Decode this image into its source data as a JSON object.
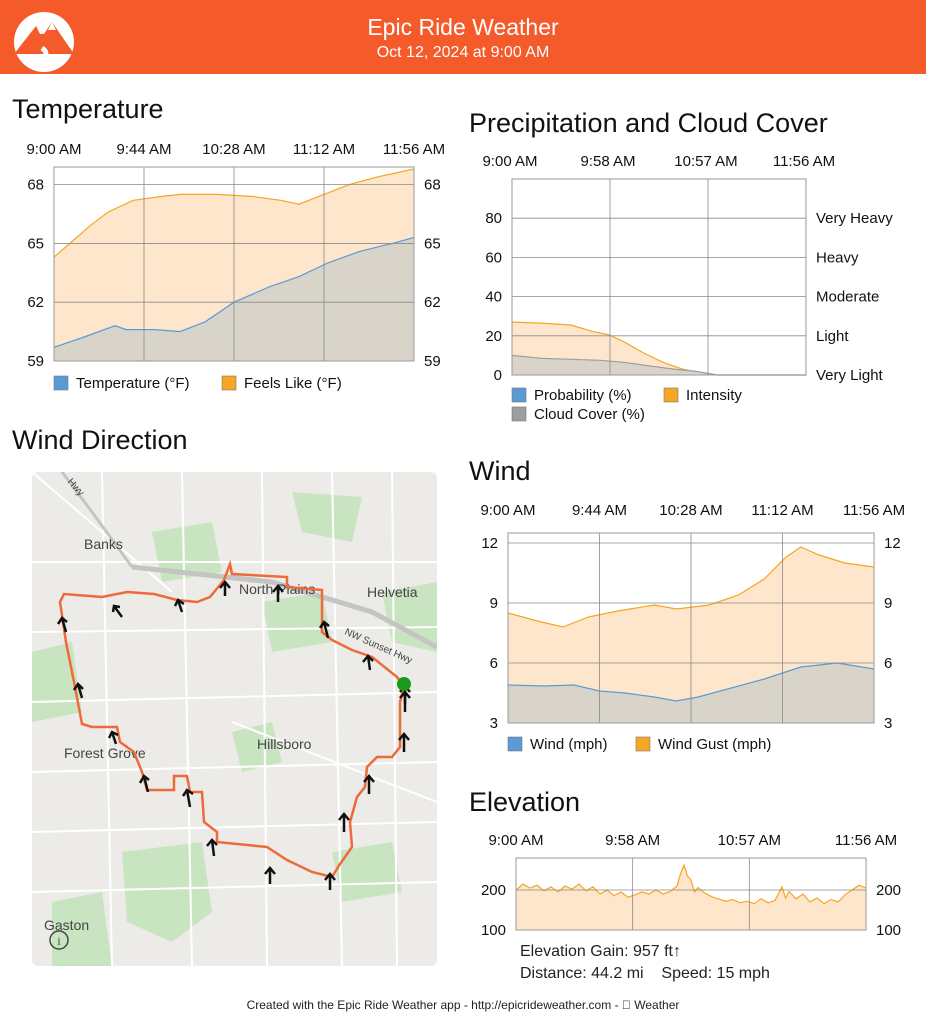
{
  "header": {
    "app_title": "Epic Ride Weather",
    "date": "Oct 12, 2024 at 9:00 AM",
    "color": "#f45a2a"
  },
  "temperature": {
    "title": "Temperature",
    "chart_data": {
      "type": "area",
      "x": [
        "9:00 AM",
        "9:44 AM",
        "10:28 AM",
        "11:12 AM",
        "11:56 AM"
      ],
      "yticks": [
        59,
        62,
        65,
        68
      ],
      "ylim": [
        59,
        68.9
      ],
      "legend_position": "bottom-left",
      "grid": true,
      "series": [
        {
          "name": "Temperature (°F)",
          "color": "#5b9bd5",
          "fill": "#d9d4ca",
          "points": [
            [
              0,
              59.7
            ],
            [
              0.08,
              60.2
            ],
            [
              0.17,
              60.8
            ],
            [
              0.2,
              60.6
            ],
            [
              0.28,
              60.6
            ],
            [
              0.35,
              60.5
            ],
            [
              0.42,
              61.0
            ],
            [
              0.5,
              62.0
            ],
            [
              0.6,
              62.8
            ],
            [
              0.68,
              63.3
            ],
            [
              0.76,
              64.0
            ],
            [
              0.85,
              64.6
            ],
            [
              0.94,
              65.0
            ],
            [
              1.0,
              65.3
            ]
          ]
        },
        {
          "name": "Feels Like (°F)",
          "color": "#f5a623",
          "fill": "#fde6cc",
          "points": [
            [
              0,
              64.3
            ],
            [
              0.05,
              65.1
            ],
            [
              0.1,
              65.9
            ],
            [
              0.15,
              66.6
            ],
            [
              0.22,
              67.2
            ],
            [
              0.3,
              67.4
            ],
            [
              0.35,
              67.5
            ],
            [
              0.45,
              67.5
            ],
            [
              0.55,
              67.4
            ],
            [
              0.63,
              67.2
            ],
            [
              0.68,
              67.0
            ],
            [
              0.75,
              67.5
            ],
            [
              0.82,
              68.0
            ],
            [
              0.9,
              68.4
            ],
            [
              1.0,
              68.8
            ]
          ]
        }
      ]
    }
  },
  "precip": {
    "title": "Precipitation and Cloud Cover",
    "chart_data": {
      "type": "area",
      "x": [
        "9:00 AM",
        "9:58 AM",
        "10:57 AM",
        "11:56 AM"
      ],
      "yticks": [
        0,
        20,
        40,
        60,
        80
      ],
      "ylim": [
        0,
        100
      ],
      "right_labels": [
        "Very Light",
        "Light",
        "Moderate",
        "Heavy",
        "Very Heavy"
      ],
      "legend_position": "bottom-left",
      "grid": true,
      "series": [
        {
          "name": "Probability (%)",
          "color": "#5b9bd5",
          "fill": "#5b9bd5",
          "points": []
        },
        {
          "name": "Intensity",
          "color": "#f5a623",
          "fill": "#fde6cc",
          "points": [
            [
              0,
              27
            ],
            [
              0.1,
              26.5
            ],
            [
              0.2,
              25.5
            ],
            [
              0.28,
              22
            ],
            [
              0.33,
              20.5
            ],
            [
              0.38,
              17
            ],
            [
              0.45,
              11
            ],
            [
              0.52,
              6
            ],
            [
              0.58,
              3
            ],
            [
              0.65,
              0.8
            ],
            [
              0.7,
              0
            ],
            [
              1.0,
              0
            ]
          ]
        },
        {
          "name": "Cloud Cover (%)",
          "color": "#9e9e9e",
          "fill": "#d9d4ca",
          "points": [
            [
              0,
              10
            ],
            [
              0.1,
              8.5
            ],
            [
              0.2,
              8
            ],
            [
              0.3,
              7.5
            ],
            [
              0.38,
              6.5
            ],
            [
              0.45,
              5
            ],
            [
              0.55,
              3
            ],
            [
              0.62,
              2
            ],
            [
              0.7,
              0
            ],
            [
              1.0,
              0
            ]
          ]
        }
      ]
    }
  },
  "wind_direction": {
    "title": "Wind Direction",
    "labels": {
      "banks": "Banks",
      "north_plains": "North Plains",
      "helvetia": "Helvetia",
      "hillsboro": "Hillsboro",
      "forest_grove": "Forest Grove",
      "gaston": "Gaston",
      "sunset_hwy": "NW Sunset Hwy",
      "hwy_nw": "Hwy"
    }
  },
  "wind": {
    "title": "Wind",
    "chart_data": {
      "type": "area",
      "x": [
        "9:00 AM",
        "9:44 AM",
        "10:28 AM",
        "11:12 AM",
        "11:56 AM"
      ],
      "yticks": [
        3,
        6,
        9,
        12
      ],
      "ylim": [
        3,
        12.5
      ],
      "legend_position": "bottom-left",
      "grid": true,
      "series": [
        {
          "name": "Wind (mph)",
          "color": "#5b9bd5",
          "fill": "#d9d4ca",
          "points": [
            [
              0,
              4.9
            ],
            [
              0.1,
              4.85
            ],
            [
              0.18,
              4.9
            ],
            [
              0.25,
              4.6
            ],
            [
              0.32,
              4.5
            ],
            [
              0.4,
              4.3
            ],
            [
              0.46,
              4.1
            ],
            [
              0.52,
              4.3
            ],
            [
              0.6,
              4.7
            ],
            [
              0.7,
              5.2
            ],
            [
              0.8,
              5.8
            ],
            [
              0.9,
              6.0
            ],
            [
              1.0,
              5.7
            ]
          ]
        },
        {
          "name": "Wind Gust (mph)",
          "color": "#f5a623",
          "fill": "#fde6cc",
          "points": [
            [
              0,
              8.5
            ],
            [
              0.08,
              8.1
            ],
            [
              0.15,
              7.8
            ],
            [
              0.22,
              8.3
            ],
            [
              0.3,
              8.6
            ],
            [
              0.4,
              8.9
            ],
            [
              0.46,
              8.7
            ],
            [
              0.55,
              8.9
            ],
            [
              0.63,
              9.4
            ],
            [
              0.7,
              10.2
            ],
            [
              0.76,
              11.3
            ],
            [
              0.8,
              11.8
            ],
            [
              0.85,
              11.4
            ],
            [
              0.92,
              11.0
            ],
            [
              1.0,
              10.8
            ]
          ]
        }
      ]
    }
  },
  "elevation": {
    "title": "Elevation",
    "gain": "Elevation Gain: 957 ft↑",
    "distance": "Distance: 44.2 mi",
    "speed": "Speed: 15 mph",
    "chart_data": {
      "type": "area",
      "x": [
        "9:00 AM",
        "9:58 AM",
        "10:57 AM",
        "11:56 AM"
      ],
      "yticks": [
        100,
        200
      ],
      "ylim": [
        100,
        280
      ],
      "grid": true,
      "series": [
        {
          "name": "Elevation",
          "color": "#f5a623",
          "fill": "#fde6cc",
          "points": [
            [
              0,
              200
            ],
            [
              0.02,
              215
            ],
            [
              0.04,
              205
            ],
            [
              0.06,
              212
            ],
            [
              0.08,
              198
            ],
            [
              0.1,
              208
            ],
            [
              0.12,
              195
            ],
            [
              0.14,
              210
            ],
            [
              0.16,
              202
            ],
            [
              0.18,
              215
            ],
            [
              0.2,
              198
            ],
            [
              0.22,
              208
            ],
            [
              0.24,
              190
            ],
            [
              0.26,
              200
            ],
            [
              0.28,
              186
            ],
            [
              0.3,
              195
            ],
            [
              0.32,
              182
            ],
            [
              0.34,
              188
            ],
            [
              0.36,
              195
            ],
            [
              0.38,
              190
            ],
            [
              0.4,
              200
            ],
            [
              0.42,
              190
            ],
            [
              0.44,
              196
            ],
            [
              0.46,
              210
            ],
            [
              0.47,
              240
            ],
            [
              0.48,
              262
            ],
            [
              0.49,
              235
            ],
            [
              0.5,
              225
            ],
            [
              0.51,
              195
            ],
            [
              0.52,
              206
            ],
            [
              0.54,
              192
            ],
            [
              0.56,
              183
            ],
            [
              0.58,
              177
            ],
            [
              0.6,
              172
            ],
            [
              0.62,
              176
            ],
            [
              0.64,
              168
            ],
            [
              0.66,
              172
            ],
            [
              0.68,
              166
            ],
            [
              0.7,
              178
            ],
            [
              0.72,
              168
            ],
            [
              0.74,
              174
            ],
            [
              0.76,
              208
            ],
            [
              0.77,
              180
            ],
            [
              0.78,
              196
            ],
            [
              0.8,
              178
            ],
            [
              0.82,
              190
            ],
            [
              0.84,
              170
            ],
            [
              0.86,
              180
            ],
            [
              0.88,
              166
            ],
            [
              0.9,
              176
            ],
            [
              0.92,
              170
            ],
            [
              0.94,
              188
            ],
            [
              0.96,
              200
            ],
            [
              0.98,
              212
            ],
            [
              1.0,
              205
            ]
          ]
        }
      ]
    }
  },
  "footer": "Created with the Epic Ride Weather app - http://epicrideweather.com - ",
  "footer_brand": "Weather",
  "icons": [
    "mountain-logo-icon",
    "apple-icon",
    "info-icon",
    "wind-arrow-icon",
    "start-marker-icon"
  ]
}
